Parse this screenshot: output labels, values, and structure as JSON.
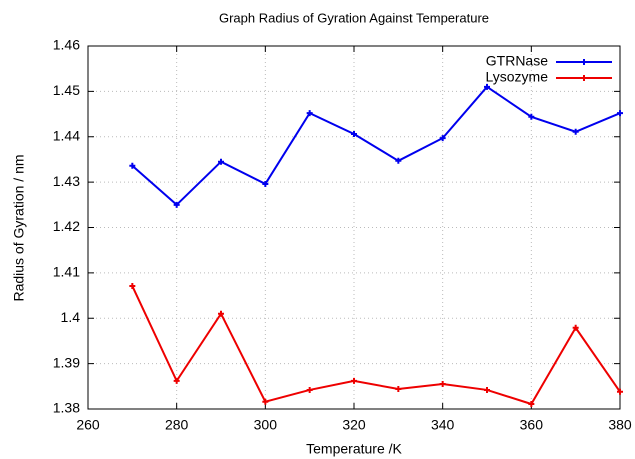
{
  "chart_data": {
    "type": "line",
    "title": "Graph Radius of Gyration Against Temperature",
    "x_label": "Temperature /K",
    "y_label": "Radius of Gyration / nm",
    "x": [
      270,
      280,
      290,
      300,
      310,
      320,
      330,
      340,
      350,
      360,
      370,
      380
    ],
    "series": [
      {
        "name": "GTRNase",
        "color": "#0000ee",
        "values": [
          1.4336,
          1.425,
          1.4345,
          1.4296,
          1.4452,
          1.4406,
          1.4347,
          1.4397,
          1.451,
          1.4444,
          1.4411,
          1.4452
        ]
      },
      {
        "name": "Lysozyme",
        "color": "#ee0000",
        "values": [
          1.4071,
          1.3862,
          1.401,
          1.3816,
          1.3842,
          1.3862,
          1.3844,
          1.3855,
          1.3842,
          1.3811,
          1.3979,
          1.3838
        ]
      }
    ],
    "xlim": [
      260,
      380
    ],
    "xticks": [
      260,
      280,
      300,
      320,
      340,
      360,
      380
    ],
    "ylim": [
      1.38,
      1.46
    ],
    "yticks": [
      1.38,
      1.39,
      1.4,
      1.41,
      1.42,
      1.43,
      1.44,
      1.45,
      1.46
    ],
    "grid": true,
    "legend": "top-right"
  }
}
